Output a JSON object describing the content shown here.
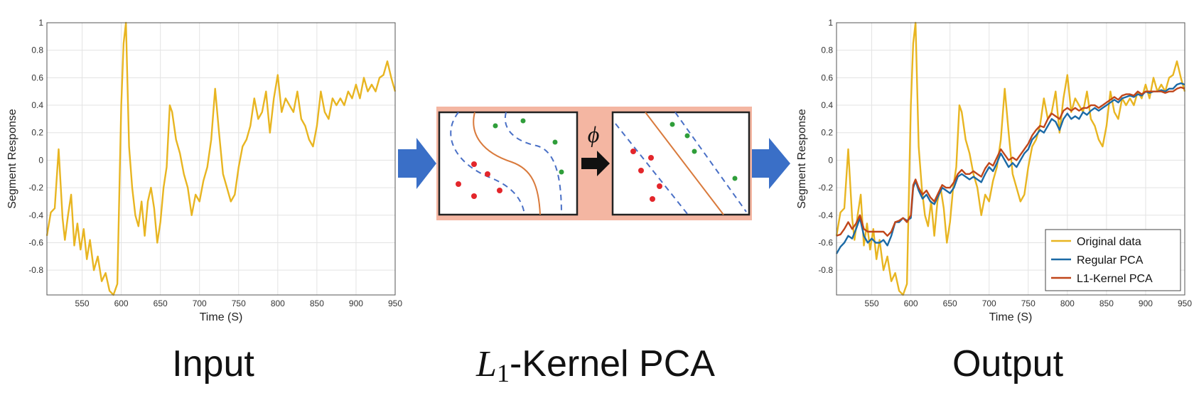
{
  "captions": {
    "input": "Input",
    "middle_l": "L",
    "middle_sub": "1",
    "middle_rest": "-Kernel PCA",
    "output": "Output"
  },
  "middle": {
    "phi": "ϕ",
    "arrow_color": "#3a6fc7",
    "band_color": "#f4b6a2"
  },
  "colors": {
    "original": "#e8b521",
    "regular": "#1b6aa6",
    "kernel": "#c0461a",
    "red_points": "#e3262b",
    "green_points": "#2f9e3a",
    "curve": "#d97a3c",
    "dashed": "#4a70c6"
  },
  "chart_data": [
    {
      "type": "line",
      "title": "",
      "xlabel": "Time (S)",
      "ylabel": "Segment Response",
      "xlim": [
        505,
        950
      ],
      "ylim": [
        -0.98,
        1.0
      ],
      "xticks": [
        550,
        600,
        650,
        700,
        750,
        800,
        850,
        900,
        950
      ],
      "yticks": [
        -0.8,
        -0.6,
        -0.4,
        -0.2,
        0,
        0.2,
        0.4,
        0.6,
        0.8,
        1
      ],
      "grid": true,
      "legend": "none",
      "series": [
        {
          "key": "original",
          "color": "#e8b521",
          "x": [
            505,
            510,
            515,
            520,
            525,
            528,
            532,
            536,
            540,
            544,
            548,
            552,
            556,
            560,
            565,
            570,
            575,
            580,
            585,
            590,
            595,
            600,
            603,
            606,
            608,
            610,
            614,
            618,
            622,
            626,
            630,
            634,
            638,
            642,
            646,
            650,
            654,
            658,
            662,
            665,
            670,
            675,
            680,
            685,
            690,
            695,
            700,
            705,
            710,
            715,
            720,
            725,
            730,
            735,
            740,
            745,
            750,
            755,
            760,
            765,
            770,
            775,
            780,
            785,
            790,
            795,
            800,
            805,
            810,
            815,
            820,
            825,
            830,
            835,
            840,
            845,
            850,
            855,
            860,
            865,
            870,
            875,
            880,
            885,
            890,
            895,
            900,
            905,
            910,
            915,
            920,
            925,
            930,
            935,
            940,
            945,
            950
          ],
          "y": [
            -0.55,
            -0.38,
            -0.35,
            0.08,
            -0.42,
            -0.58,
            -0.4,
            -0.25,
            -0.62,
            -0.46,
            -0.65,
            -0.5,
            -0.72,
            -0.58,
            -0.8,
            -0.7,
            -0.88,
            -0.82,
            -0.95,
            -0.98,
            -0.9,
            0.4,
            0.85,
            1.0,
            0.55,
            0.1,
            -0.2,
            -0.4,
            -0.48,
            -0.3,
            -0.55,
            -0.3,
            -0.2,
            -0.35,
            -0.6,
            -0.45,
            -0.2,
            -0.05,
            0.4,
            0.35,
            0.15,
            0.05,
            -0.1,
            -0.2,
            -0.4,
            -0.25,
            -0.3,
            -0.15,
            -0.05,
            0.15,
            0.52,
            0.2,
            -0.1,
            -0.2,
            -0.3,
            -0.25,
            -0.05,
            0.1,
            0.15,
            0.25,
            0.45,
            0.3,
            0.35,
            0.5,
            0.2,
            0.45,
            0.62,
            0.35,
            0.45,
            0.4,
            0.35,
            0.5,
            0.3,
            0.25,
            0.15,
            0.1,
            0.25,
            0.5,
            0.35,
            0.3,
            0.45,
            0.4,
            0.45,
            0.4,
            0.5,
            0.45,
            0.55,
            0.45,
            0.6,
            0.5,
            0.55,
            0.5,
            0.6,
            0.62,
            0.72,
            0.6,
            0.5
          ]
        }
      ]
    },
    {
      "type": "line",
      "title": "",
      "xlabel": "Time (S)",
      "ylabel": "Segment Response",
      "xlim": [
        505,
        950
      ],
      "ylim": [
        -0.98,
        1.0
      ],
      "xticks": [
        550,
        600,
        650,
        700,
        750,
        800,
        850,
        900,
        950
      ],
      "yticks": [
        -0.8,
        -0.6,
        -0.4,
        -0.2,
        0,
        0.2,
        0.4,
        0.6,
        0.8,
        1
      ],
      "grid": true,
      "legend": "bottom-right",
      "series": [
        {
          "key": "original",
          "name": "Original data",
          "color": "#e8b521",
          "x": [
            505,
            510,
            515,
            520,
            525,
            528,
            532,
            536,
            540,
            544,
            548,
            552,
            556,
            560,
            565,
            570,
            575,
            580,
            585,
            590,
            595,
            600,
            603,
            606,
            608,
            610,
            614,
            618,
            622,
            626,
            630,
            634,
            638,
            642,
            646,
            650,
            654,
            658,
            662,
            665,
            670,
            675,
            680,
            685,
            690,
            695,
            700,
            705,
            710,
            715,
            720,
            725,
            730,
            735,
            740,
            745,
            750,
            755,
            760,
            765,
            770,
            775,
            780,
            785,
            790,
            795,
            800,
            805,
            810,
            815,
            820,
            825,
            830,
            835,
            840,
            845,
            850,
            855,
            860,
            865,
            870,
            875,
            880,
            885,
            890,
            895,
            900,
            905,
            910,
            915,
            920,
            925,
            930,
            935,
            940,
            945,
            950
          ],
          "y": [
            -0.55,
            -0.38,
            -0.35,
            0.08,
            -0.42,
            -0.58,
            -0.4,
            -0.25,
            -0.62,
            -0.46,
            -0.65,
            -0.5,
            -0.72,
            -0.58,
            -0.8,
            -0.7,
            -0.88,
            -0.82,
            -0.95,
            -0.98,
            -0.9,
            0.4,
            0.85,
            1.0,
            0.55,
            0.1,
            -0.2,
            -0.4,
            -0.48,
            -0.3,
            -0.55,
            -0.3,
            -0.2,
            -0.35,
            -0.6,
            -0.45,
            -0.2,
            -0.05,
            0.4,
            0.35,
            0.15,
            0.05,
            -0.1,
            -0.2,
            -0.4,
            -0.25,
            -0.3,
            -0.15,
            -0.05,
            0.15,
            0.52,
            0.2,
            -0.1,
            -0.2,
            -0.3,
            -0.25,
            -0.05,
            0.1,
            0.15,
            0.25,
            0.45,
            0.3,
            0.35,
            0.5,
            0.2,
            0.45,
            0.62,
            0.35,
            0.45,
            0.4,
            0.35,
            0.5,
            0.3,
            0.25,
            0.15,
            0.1,
            0.25,
            0.5,
            0.35,
            0.3,
            0.45,
            0.4,
            0.45,
            0.4,
            0.5,
            0.45,
            0.55,
            0.45,
            0.6,
            0.5,
            0.55,
            0.5,
            0.6,
            0.62,
            0.72,
            0.6,
            0.5
          ]
        },
        {
          "key": "regular",
          "name": "Regular PCA",
          "color": "#1b6aa6",
          "x": [
            505,
            510,
            515,
            520,
            525,
            530,
            535,
            540,
            545,
            550,
            555,
            560,
            565,
            570,
            575,
            580,
            585,
            590,
            595,
            600,
            603,
            606,
            610,
            615,
            620,
            625,
            630,
            635,
            640,
            645,
            650,
            655,
            660,
            665,
            670,
            675,
            680,
            685,
            690,
            695,
            700,
            705,
            710,
            715,
            720,
            725,
            730,
            735,
            740,
            745,
            750,
            755,
            760,
            765,
            770,
            775,
            780,
            785,
            790,
            795,
            800,
            805,
            810,
            815,
            820,
            825,
            830,
            835,
            840,
            845,
            850,
            855,
            860,
            865,
            870,
            875,
            880,
            885,
            890,
            895,
            900,
            905,
            910,
            915,
            920,
            925,
            930,
            935,
            940,
            945,
            950
          ],
          "y": [
            -0.68,
            -0.63,
            -0.6,
            -0.55,
            -0.57,
            -0.5,
            -0.42,
            -0.55,
            -0.6,
            -0.57,
            -0.6,
            -0.6,
            -0.58,
            -0.62,
            -0.55,
            -0.45,
            -0.45,
            -0.42,
            -0.44,
            -0.42,
            -0.2,
            -0.15,
            -0.22,
            -0.28,
            -0.25,
            -0.3,
            -0.32,
            -0.26,
            -0.2,
            -0.22,
            -0.24,
            -0.2,
            -0.12,
            -0.1,
            -0.12,
            -0.14,
            -0.12,
            -0.14,
            -0.16,
            -0.1,
            -0.05,
            -0.08,
            -0.02,
            0.05,
            0.0,
            -0.05,
            -0.02,
            -0.05,
            0.0,
            0.05,
            0.08,
            0.15,
            0.18,
            0.22,
            0.2,
            0.25,
            0.3,
            0.28,
            0.22,
            0.3,
            0.34,
            0.3,
            0.32,
            0.3,
            0.35,
            0.33,
            0.36,
            0.38,
            0.36,
            0.38,
            0.4,
            0.42,
            0.44,
            0.42,
            0.45,
            0.46,
            0.47,
            0.46,
            0.48,
            0.47,
            0.5,
            0.49,
            0.5,
            0.5,
            0.51,
            0.5,
            0.52,
            0.52,
            0.55,
            0.56,
            0.55
          ]
        },
        {
          "key": "kernel",
          "name": "L1-Kernel PCA",
          "color": "#c0461a",
          "x": [
            505,
            510,
            515,
            520,
            525,
            530,
            535,
            540,
            545,
            550,
            555,
            560,
            565,
            570,
            575,
            580,
            585,
            590,
            595,
            600,
            603,
            606,
            610,
            615,
            620,
            625,
            630,
            635,
            640,
            645,
            650,
            655,
            660,
            665,
            670,
            675,
            680,
            685,
            690,
            695,
            700,
            705,
            710,
            715,
            720,
            725,
            730,
            735,
            740,
            745,
            750,
            755,
            760,
            765,
            770,
            775,
            780,
            785,
            790,
            795,
            800,
            805,
            810,
            815,
            820,
            825,
            830,
            835,
            840,
            845,
            850,
            855,
            860,
            865,
            870,
            875,
            880,
            885,
            890,
            895,
            900,
            905,
            910,
            915,
            920,
            925,
            930,
            935,
            940,
            945,
            950
          ],
          "y": [
            -0.55,
            -0.54,
            -0.5,
            -0.45,
            -0.5,
            -0.46,
            -0.4,
            -0.5,
            -0.52,
            -0.52,
            -0.52,
            -0.52,
            -0.52,
            -0.55,
            -0.52,
            -0.45,
            -0.44,
            -0.42,
            -0.45,
            -0.4,
            -0.18,
            -0.14,
            -0.2,
            -0.25,
            -0.22,
            -0.27,
            -0.3,
            -0.24,
            -0.18,
            -0.2,
            -0.2,
            -0.16,
            -0.1,
            -0.07,
            -0.1,
            -0.1,
            -0.08,
            -0.1,
            -0.12,
            -0.06,
            -0.02,
            -0.04,
            0.02,
            0.08,
            0.04,
            0.0,
            0.02,
            0.0,
            0.04,
            0.08,
            0.12,
            0.18,
            0.22,
            0.25,
            0.24,
            0.3,
            0.34,
            0.32,
            0.3,
            0.36,
            0.38,
            0.36,
            0.38,
            0.36,
            0.38,
            0.38,
            0.4,
            0.4,
            0.38,
            0.4,
            0.42,
            0.44,
            0.46,
            0.44,
            0.47,
            0.48,
            0.48,
            0.47,
            0.5,
            0.48,
            0.5,
            0.5,
            0.5,
            0.5,
            0.5,
            0.49,
            0.5,
            0.5,
            0.52,
            0.53,
            0.52
          ]
        }
      ]
    }
  ]
}
